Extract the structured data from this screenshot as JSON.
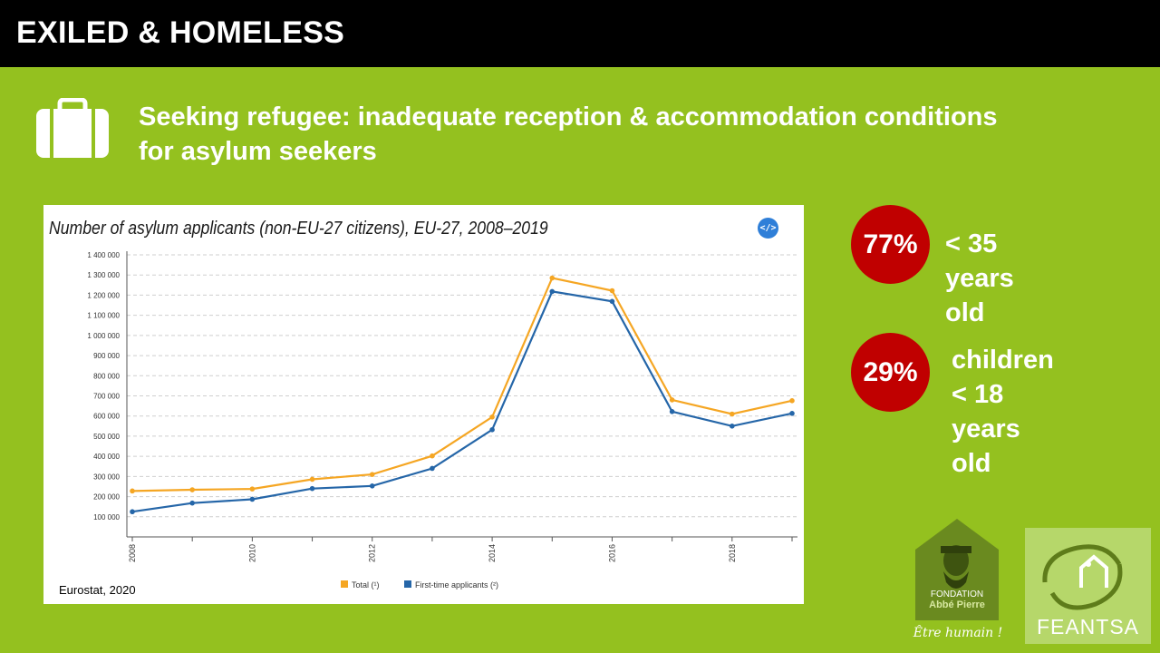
{
  "header": {
    "title": "EXILED & HOMELESS"
  },
  "subtitle": {
    "line1": "Seeking refugee: inadequate reception & accommodation conditions",
    "line2": "for asylum seekers"
  },
  "chart_panel": {
    "source": "Eurostat, 2020",
    "embed_label": "</>"
  },
  "chart_data": {
    "type": "line",
    "title": "Number of asylum applicants (non-EU-27 citizens), EU-27, 2008–2019",
    "x": [
      2008,
      2009,
      2010,
      2011,
      2012,
      2013,
      2014,
      2015,
      2016,
      2017,
      2018,
      2019
    ],
    "x_tick_labels": [
      "2008",
      "2010",
      "2012",
      "2014",
      "2016",
      "2018"
    ],
    "y_tick_labels": [
      "100 000",
      "200 000",
      "300 000",
      "400 000",
      "500 000",
      "600 000",
      "700 000",
      "800 000",
      "900 000",
      "1 000 000",
      "1 100 000",
      "1 200 000",
      "1 300 000",
      "1 400 000"
    ],
    "ylim": [
      0,
      1400000
    ],
    "grid": true,
    "legend_position": "bottom-center",
    "series": [
      {
        "name": "Total (¹)",
        "color": "#f5a623",
        "values": [
          228000,
          234000,
          238000,
          286000,
          310000,
          402000,
          595000,
          1285000,
          1222000,
          680000,
          610000,
          676000
        ]
      },
      {
        "name": "First-time applicants (²)",
        "color": "#2566a8",
        "values": [
          125000,
          168000,
          187000,
          240000,
          253000,
          340000,
          532000,
          1218000,
          1169000,
          622000,
          550000,
          613000
        ]
      }
    ]
  },
  "stats": [
    {
      "value": "77%",
      "label_lines": [
        "< 35 years old"
      ]
    },
    {
      "value": "29%",
      "label_lines": [
        "children < 18",
        "years old"
      ]
    }
  ],
  "logos": {
    "fap": {
      "line1": "FONDATION",
      "line2": "Abbé Pierre",
      "tagline": "Être humain !"
    },
    "feantsa": {
      "name": "FEANTSA"
    }
  },
  "colors": {
    "background": "#94c11f",
    "header": "#000000",
    "stat_circle": "#c00000"
  }
}
